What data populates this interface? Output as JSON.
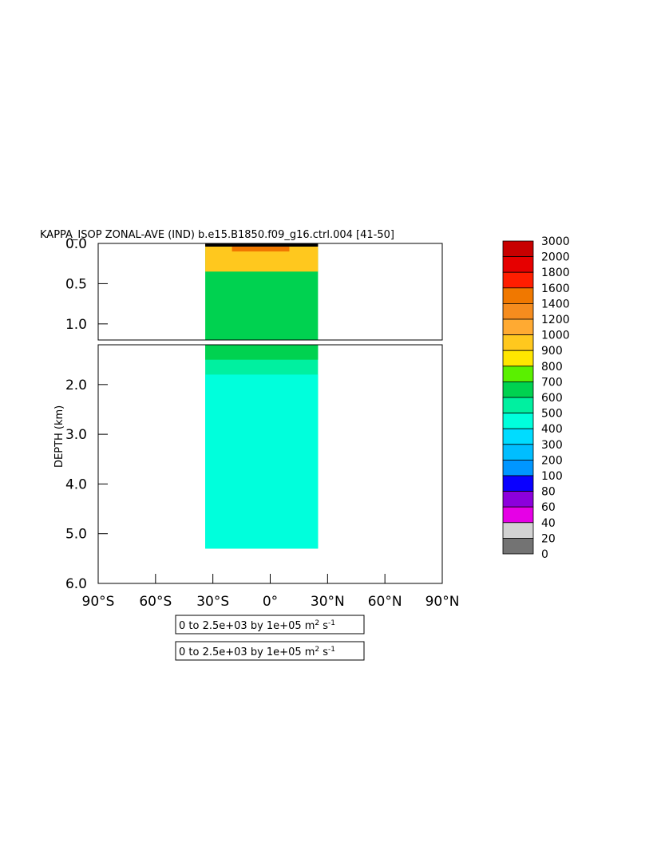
{
  "chart_data": {
    "type": "heatmap",
    "title": "KAPPA_ISOP ZONAL-AVE (IND) b.e15.B1850.f09_g16.ctrl.004 [41-50]",
    "ylabel": "DEPTH (km)",
    "xlabel": "",
    "xlim": [
      -90,
      90
    ],
    "upper_panel_ylim": [
      0.0,
      1.2
    ],
    "lower_panel_ylim": [
      1.2,
      6.0
    ],
    "x_ticks": [
      {
        "value": -90,
        "label": "90°S"
      },
      {
        "value": -60,
        "label": "60°S"
      },
      {
        "value": -30,
        "label": "30°S"
      },
      {
        "value": 0,
        "label": "0°"
      },
      {
        "value": 30,
        "label": "30°N"
      },
      {
        "value": 60,
        "label": "60°N"
      },
      {
        "value": 90,
        "label": "90°N"
      }
    ],
    "upper_y_ticks": [
      {
        "value": 0.0,
        "label": "0.0"
      },
      {
        "value": 0.5,
        "label": "0.5"
      },
      {
        "value": 1.0,
        "label": "1.0"
      }
    ],
    "lower_y_ticks": [
      {
        "value": 2.0,
        "label": "2.0"
      },
      {
        "value": 3.0,
        "label": "3.0"
      },
      {
        "value": 4.0,
        "label": "4.0"
      },
      {
        "value": 5.0,
        "label": "5.0"
      },
      {
        "value": 6.0,
        "label": "6.0"
      }
    ],
    "colorbar": [
      {
        "label": "3000",
        "color": "#c80000"
      },
      {
        "label": "2000",
        "color": "#e60000"
      },
      {
        "label": "1800",
        "color": "#ff1e00"
      },
      {
        "label": "1600",
        "color": "#f07800"
      },
      {
        "label": "1400",
        "color": "#f58c1e"
      },
      {
        "label": "1200",
        "color": "#ffaa32"
      },
      {
        "label": "1000",
        "color": "#ffc81e"
      },
      {
        "label": "900",
        "color": "#ffe600"
      },
      {
        "label": "800",
        "color": "#5af000"
      },
      {
        "label": "700",
        "color": "#00d250"
      },
      {
        "label": "600",
        "color": "#00f0a0"
      },
      {
        "label": "500",
        "color": "#00ffdc"
      },
      {
        "label": "400",
        "color": "#00dcff"
      },
      {
        "label": "300",
        "color": "#00beff"
      },
      {
        "label": "200",
        "color": "#0096ff"
      },
      {
        "label": "100",
        "color": "#0a00ff"
      },
      {
        "label": "80",
        "color": "#8c00dc"
      },
      {
        "label": "60",
        "color": "#e600e6"
      },
      {
        "label": "40",
        "color": "#d2d2d2"
      },
      {
        "label": "20",
        "color": "#737373"
      },
      {
        "label": "0",
        "color": ""
      }
    ],
    "data_extent_lat": [
      -34,
      25
    ],
    "field_regions": [
      {
        "level": "600",
        "lat": [
          -34,
          25
        ],
        "depth": [
          1.2,
          5.3
        ]
      },
      {
        "level": "500",
        "lat": [
          -34,
          25
        ],
        "depth": [
          1.8,
          5.3
        ]
      },
      {
        "level": "700",
        "lat": [
          -34,
          25
        ],
        "depth": [
          0.05,
          1.5
        ]
      },
      {
        "level": "1000",
        "lat": [
          -34,
          25
        ],
        "depth": [
          0.0,
          0.35
        ]
      },
      {
        "level": "1600",
        "lat": [
          -20,
          10
        ],
        "depth": [
          0.0,
          0.1
        ]
      }
    ],
    "range_boxes": [
      {
        "text": "0 to 2.5e+03 by 1e+05 m",
        "sup1": "2",
        "mid": " s",
        "sup2": "-1"
      },
      {
        "text": "0 to 2.5e+03 by 1e+05 m",
        "sup1": "2",
        "mid": " s",
        "sup2": "-1"
      }
    ]
  }
}
